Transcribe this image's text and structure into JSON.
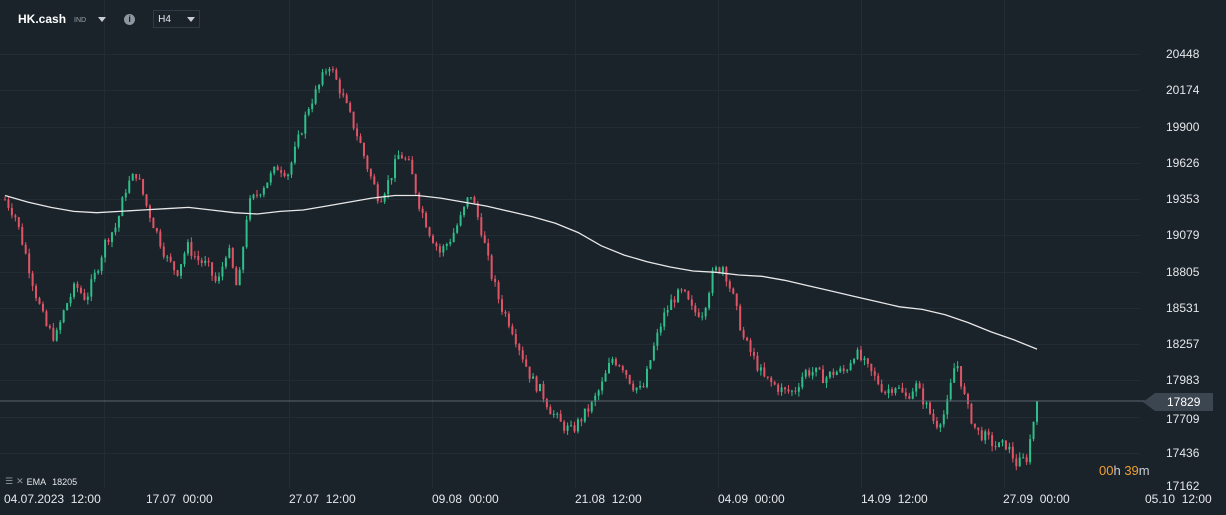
{
  "header": {
    "symbol": "HK.cash",
    "market": "IND",
    "info_icon": "info-icon",
    "timeframe": "H4"
  },
  "y_axis": {
    "ticks": [
      "20448",
      "20174",
      "19900",
      "19626",
      "19353",
      "19079",
      "18805",
      "18531",
      "18257",
      "17983",
      "17709",
      "17436",
      "17162"
    ]
  },
  "x_axis": {
    "ticks": [
      "04.07.2023  12:00",
      "17.07  00:00",
      "27.07  12:00",
      "09.08  00:00",
      "21.08  12:00",
      "04.09  00:00",
      "14.09  12:00",
      "27.09  00:00",
      "05.10  12:00"
    ]
  },
  "current_price": {
    "label": "17829",
    "value": 17829
  },
  "countdown": {
    "hours": "00",
    "hours_unit": "h",
    "minutes": "39",
    "minutes_unit": "m"
  },
  "legend": {
    "icons": [
      "list-icon",
      "close-icon"
    ],
    "indicator": "EMA",
    "value": "18205"
  },
  "colors": {
    "background": "#1a222a",
    "up": "#2fbf8a",
    "down": "#e05566",
    "ema": "#e8e8e8",
    "price_line": "#5c666f",
    "countdown": "#f0a030"
  },
  "chart_data": {
    "type": "candlestick",
    "symbol": "HK.cash",
    "timeframe": "H4",
    "ylim": [
      17162,
      20600
    ],
    "x_range": [
      "04.07.2023 12:00",
      "05.10 12:00"
    ],
    "grid": true,
    "anchors_close": [
      19350,
      19230,
      18950,
      18650,
      18400,
      18300,
      18550,
      18700,
      18600,
      18800,
      19050,
      19150,
      19450,
      19550,
      19300,
      19100,
      18900,
      18800,
      19000,
      18900,
      18850,
      18700,
      19000,
      18650,
      19300,
      19400,
      19500,
      19600,
      19550,
      19800,
      20050,
      20200,
      20380,
      20200,
      20000,
      19800,
      19550,
      19350,
      19500,
      19700,
      19600,
      19300,
      19100,
      18950,
      19050,
      19200,
      19400,
      19150,
      18800,
      18550,
      18400,
      18200,
      18000,
      17900,
      17750,
      17650,
      17600,
      17700,
      17800,
      17950,
      18150,
      18100,
      17950,
      17900,
      18200,
      18450,
      18600,
      18650,
      18500,
      18500,
      18800,
      18850,
      18600,
      18300,
      18150,
      18000,
      17950,
      17900,
      17900,
      18050,
      18050,
      18000,
      18050,
      18050,
      18200,
      18100,
      18000,
      17900,
      17950,
      17850,
      17950,
      17800,
      17650,
      17750,
      18150,
      17800,
      17600,
      17550,
      17480,
      17500,
      17350,
      17400,
      17830
    ],
    "ema": {
      "name": "EMA",
      "last_value": 18205,
      "values": [
        19380,
        19330,
        19290,
        19260,
        19250,
        19260,
        19270,
        19280,
        19290,
        19270,
        19250,
        19240,
        19260,
        19270,
        19300,
        19330,
        19360,
        19380,
        19380,
        19360,
        19330,
        19300,
        19260,
        19220,
        19170,
        19100,
        19000,
        18930,
        18880,
        18840,
        18810,
        18800,
        18780,
        18770,
        18740,
        18700,
        18660,
        18620,
        18580,
        18540,
        18520,
        18480,
        18420,
        18350,
        18290,
        18220
      ]
    }
  }
}
